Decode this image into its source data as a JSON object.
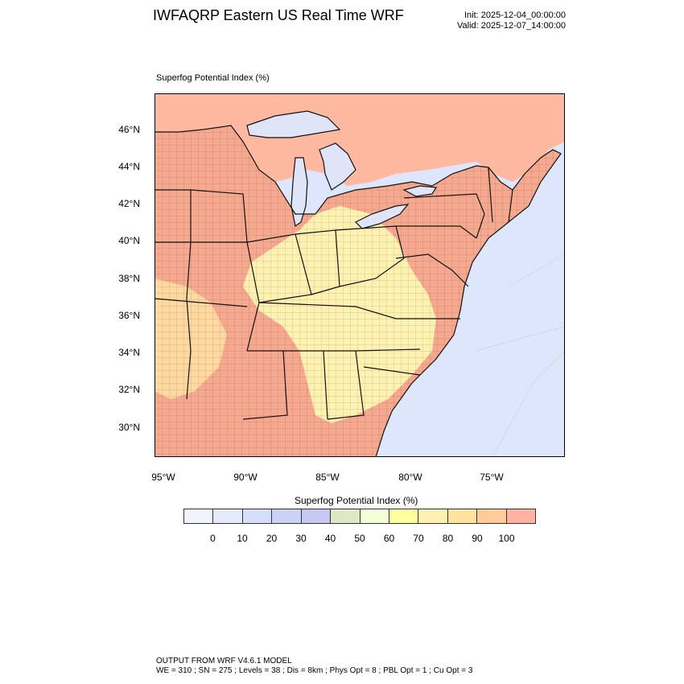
{
  "header": {
    "title": "IWFAQRP Eastern US Real Time WRF",
    "init": "Init: 2025-12-04_00:00:00",
    "valid": "Valid: 2025-12-07_14:00:00"
  },
  "map": {
    "field_label": "Superfog Potential Index   (%)",
    "lat_ticks": [
      "46°N",
      "44°N",
      "42°N",
      "40°N",
      "38°N",
      "36°N",
      "34°N",
      "32°N",
      "30°N"
    ],
    "lon_ticks": [
      "95°W",
      "90°W",
      "85°W",
      "80°W",
      "75°W"
    ],
    "colors": {
      "land_high": "#f7a98f",
      "land_mid": "#ffd9a0",
      "land_low": "#fff2b0",
      "canada": "#ffb9a0",
      "water": "#dde6fb",
      "lake": "#dfe4f8",
      "border": "#111111"
    }
  },
  "colorbar": {
    "title": "Superfog Potential Index  (%)",
    "colors": [
      "#f2f4fb",
      "#e4eafb",
      "#d6ddf9",
      "#cbd3f5",
      "#c7c8f2",
      "#dde8c4",
      "#f4ffd9",
      "#ffff9e",
      "#fff2b0",
      "#ffe39e",
      "#ffcc99",
      "#ffb3a0"
    ],
    "labels": [
      "0",
      "10",
      "20",
      "30",
      "40",
      "50",
      "60",
      "70",
      "80",
      "90",
      "100"
    ]
  },
  "footer": {
    "line1": "OUTPUT FROM WRF V4.6.1 MODEL",
    "line2": "WE = 310 ; SN = 275 ; Levels = 38 ; Dis = 8km ; Phys Opt = 8 ; PBL Opt = 1 ; Cu Opt = 3"
  }
}
